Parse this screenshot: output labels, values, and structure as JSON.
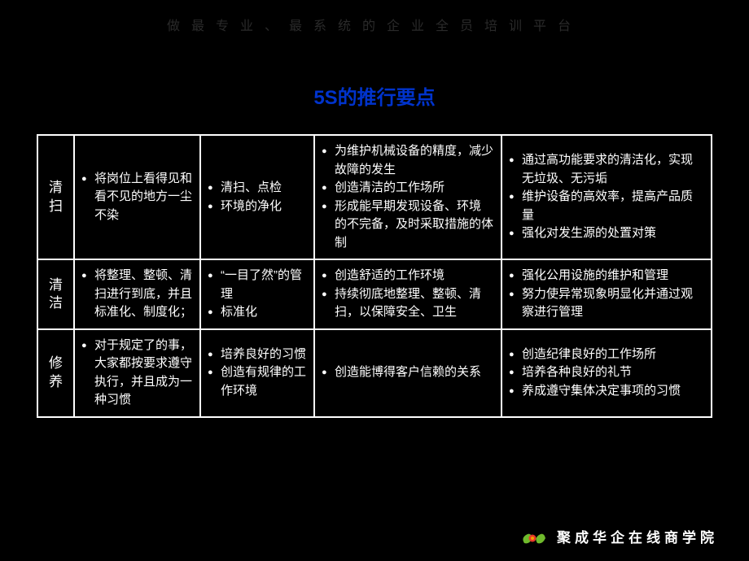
{
  "header_banner": "做最专业、最系统的企业全员培训平台",
  "title": "5S的推行要点",
  "table": {
    "rows": [
      {
        "head": "清扫",
        "c1": [
          "将岗位上看得见和看不见的地方一尘不染"
        ],
        "c2": [
          "清扫、点检",
          "环境的净化"
        ],
        "c3": [
          "为维护机械设备的精度，减少故障的发生",
          "创造清洁的工作场所",
          "形成能早期发现设备、环境 的不完备，及时采取措施的体制"
        ],
        "c4": [
          "通过高功能要求的清洁化，实现无垃圾、无污垢",
          "维护设备的高效率，提高产品质量",
          "强化对发生源的处置对策"
        ]
      },
      {
        "head": "清洁",
        "c1": [
          "将整理、整顿、清扫进行到底，并且标准化、制度化；"
        ],
        "c2": [
          "“一目了然”的管理",
          "标准化"
        ],
        "c3": [
          "创造舒适的工作环境",
          "持续彻底地整理、整顿、清扫，以保障安全、卫生"
        ],
        "c4": [
          "强化公用设施的维护和管理",
          "努力使异常现象明显化并通过观察进行管理"
        ]
      },
      {
        "head": "修养",
        "c1": [
          "对于规定了的事，大家都按要求遵守执行，并且成为一种习惯"
        ],
        "c2": [
          "培养良好的习惯",
          "创造有规律的工作环境"
        ],
        "c3": [
          "创造能博得客户信赖的关系"
        ],
        "c4": [
          "创造纪律良好的工作场所",
          "培养各种良好的礼节",
          "养成遵守集体决定事项的习惯"
        ]
      }
    ]
  },
  "footer_text": "聚成华企在线商学院",
  "colors": {
    "background": "#000000",
    "border": "#ffffff",
    "text": "#ffffff",
    "title": "#0033cc",
    "logo_green": "#6fba2c",
    "logo_red": "#e83828",
    "logo_yellow": "#f5a100"
  }
}
